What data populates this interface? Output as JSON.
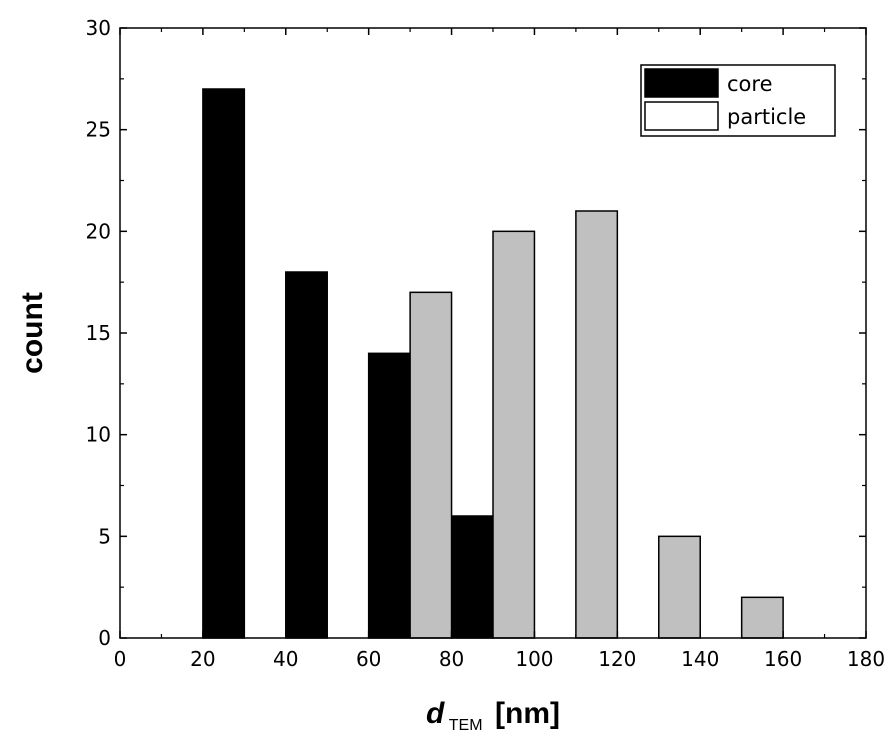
{
  "chart_data": {
    "type": "bar",
    "title": "",
    "xlabel": {
      "main": "d",
      "subscript": "TEM",
      "unit": "[nm]"
    },
    "ylabel": "count",
    "xlim": [
      0,
      180
    ],
    "ylim": [
      0,
      30
    ],
    "x_ticks": [
      0,
      20,
      40,
      60,
      80,
      100,
      120,
      140,
      160,
      180
    ],
    "y_ticks": [
      0,
      5,
      10,
      15,
      20,
      25,
      30
    ],
    "grid": false,
    "legend": {
      "placement": "top-right"
    },
    "series": [
      {
        "name": "core",
        "color": "#000000",
        "bars": [
          {
            "x0": 20,
            "x1": 30,
            "value": 27
          },
          {
            "x0": 40,
            "x1": 50,
            "value": 18
          },
          {
            "x0": 60,
            "x1": 70,
            "value": 14
          },
          {
            "x0": 80,
            "x1": 90,
            "value": 6
          }
        ]
      },
      {
        "name": "particle",
        "color": "#c0c0c0",
        "legend_swatch": "#ffffff",
        "bars": [
          {
            "x0": 70,
            "x1": 80,
            "value": 17
          },
          {
            "x0": 90,
            "x1": 100,
            "value": 20
          },
          {
            "x0": 110,
            "x1": 120,
            "value": 21
          },
          {
            "x0": 130,
            "x1": 140,
            "value": 5
          },
          {
            "x0": 150,
            "x1": 160,
            "value": 2
          }
        ]
      }
    ]
  }
}
